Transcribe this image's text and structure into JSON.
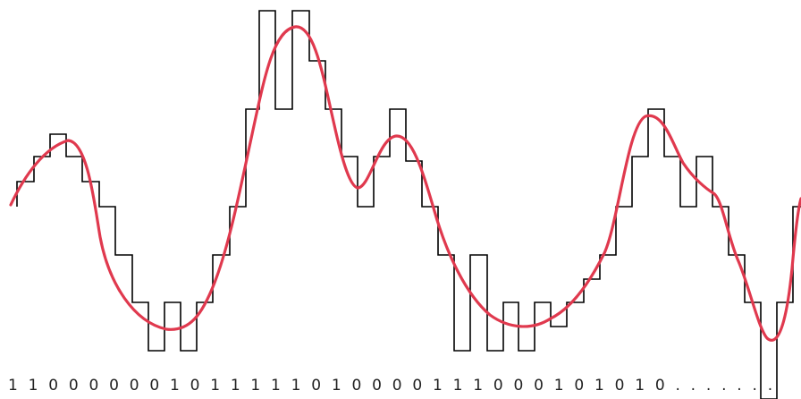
{
  "diagram": {
    "bitstream_text": "1 1 0 0 0 0 0 0 1 0 1 1 1 1 1 0 1 0 0 0 0 1 1 1 0 0 0 1 0 1 0 1 0 . . . . . . .",
    "colors": {
      "staircase": "#000000",
      "analog": "#e0394e",
      "text": "#222222"
    }
  }
}
